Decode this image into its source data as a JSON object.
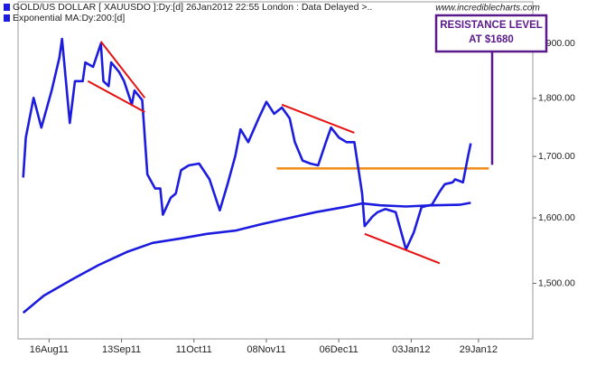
{
  "chart_data": {
    "type": "line",
    "website": "www.incrediblecharts.com",
    "ylog": true,
    "ylim": [
      1420,
      1980
    ],
    "yticks": [
      {
        "value": 1500,
        "label": "1,500.00"
      },
      {
        "value": 1600,
        "label": "1,600.00"
      },
      {
        "value": 1700,
        "label": "1,700.00"
      },
      {
        "value": 1800,
        "label": "1,800.00"
      },
      {
        "value": 1900,
        "label": "1,900.00"
      }
    ],
    "xlim": [
      "2011-08-04",
      "2012-02-19"
    ],
    "xticks": [
      {
        "value": "2011-08-16",
        "label": "16Aug11"
      },
      {
        "value": "2011-09-13",
        "label": "13Sep11"
      },
      {
        "value": "2011-10-11",
        "label": "11Oct11"
      },
      {
        "value": "2011-11-08",
        "label": "08Nov11"
      },
      {
        "value": "2011-12-06",
        "label": "06Dec11"
      },
      {
        "value": "2012-01-03",
        "label": "03Jan12"
      },
      {
        "value": "2012-01-29",
        "label": "29Jan12"
      }
    ],
    "series": [
      {
        "name": "GOLD/US DOLLAR [ XAUUSDO ]:Dy:[d]  26Jan2012 22:55 London : Data Delayed >..",
        "color": "#1c1ce0",
        "x": [
          "2011-08-06",
          "2011-08-07",
          "2011-08-10",
          "2011-08-13",
          "2011-08-17",
          "2011-08-20",
          "2011-08-21",
          "2011-08-24",
          "2011-08-26",
          "2011-08-29",
          "2011-08-30",
          "2011-09-02",
          "2011-09-05",
          "2011-09-06",
          "2011-09-08",
          "2011-09-09",
          "2011-09-12",
          "2011-09-14",
          "2011-09-17",
          "2011-09-18",
          "2011-09-21",
          "2011-09-23",
          "2011-09-26",
          "2011-09-28",
          "2011-09-29",
          "2011-10-02",
          "2011-10-04",
          "2011-10-06",
          "2011-10-09",
          "2011-10-13",
          "2011-10-17",
          "2011-10-20",
          "2011-10-21",
          "2011-10-24",
          "2011-10-27",
          "2011-10-29",
          "2011-11-01",
          "2011-11-05",
          "2011-11-08",
          "2011-11-11",
          "2011-11-14",
          "2011-11-17",
          "2011-11-19",
          "2011-11-22",
          "2011-11-25",
          "2011-11-28",
          "2011-12-01",
          "2011-12-03",
          "2011-12-06",
          "2011-12-09",
          "2011-12-12",
          "2011-12-15",
          "2011-12-16",
          "2011-12-19",
          "2011-12-21",
          "2011-12-24",
          "2011-12-28",
          "2011-12-31",
          "2012-01-01",
          "2012-01-04",
          "2012-01-07",
          "2012-01-11",
          "2012-01-14",
          "2012-01-16",
          "2012-01-19",
          "2012-01-20",
          "2012-01-23",
          "2012-01-25",
          "2012-01-26"
        ],
        "values": [
          1665,
          1732,
          1801,
          1749,
          1814,
          1874,
          1909,
          1757,
          1831,
          1831,
          1865,
          1857,
          1900,
          1831,
          1822,
          1865,
          1848,
          1831,
          1789,
          1814,
          1797,
          1670,
          1647,
          1647,
          1605,
          1632,
          1639,
          1677,
          1685,
          1688,
          1662,
          1624,
          1612,
          1654,
          1701,
          1746,
          1724,
          1765,
          1794,
          1773,
          1784,
          1765,
          1724,
          1693,
          1688,
          1685,
          1724,
          1749,
          1732,
          1724,
          1724,
          1639,
          1587,
          1602,
          1609,
          1614,
          1609,
          1565,
          1551,
          1577,
          1617,
          1621,
          1642,
          1654,
          1657,
          1662,
          1657,
          1701,
          1722
        ]
      },
      {
        "name": "Exponential MA:Dy:200:[d]",
        "color": "#1c1ce0",
        "x": [
          "2011-08-06",
          "2011-08-14",
          "2011-08-25",
          "2011-09-04",
          "2011-09-15",
          "2011-09-25",
          "2011-10-06",
          "2011-10-16",
          "2011-10-27",
          "2011-11-06",
          "2011-11-17",
          "2011-11-27",
          "2011-12-08",
          "2011-12-15",
          "2011-12-22",
          "2012-01-01",
          "2012-01-11",
          "2012-01-22",
          "2012-01-26"
        ],
        "values": [
          1457,
          1482,
          1506,
          1527,
          1547,
          1561,
          1568,
          1575,
          1580,
          1590,
          1600,
          1609,
          1617,
          1623,
          1620,
          1618,
          1620,
          1621,
          1624
        ]
      }
    ],
    "trendlines": [
      {
        "color": "#e81010",
        "x": [
          "2011-09-05",
          "2011-09-22"
        ],
        "values": [
          1904,
          1801
        ]
      },
      {
        "color": "#e81010",
        "x": [
          "2011-08-31",
          "2011-09-22"
        ],
        "values": [
          1831,
          1776
        ]
      },
      {
        "color": "#e81010",
        "x": [
          "2011-11-14",
          "2011-12-12"
        ],
        "values": [
          1789,
          1740
        ]
      },
      {
        "color": "#e81010",
        "x": [
          "2011-12-16",
          "2012-01-14"
        ],
        "values": [
          1575,
          1530
        ]
      }
    ],
    "resistance": {
      "color": "#f08c14",
      "x": [
        "2011-11-12",
        "2012-02-02"
      ],
      "value": 1680
    },
    "annotation": {
      "lines": [
        "RESISTANCE LEVEL",
        "AT $1680"
      ],
      "color": "#5a1a8c"
    }
  }
}
